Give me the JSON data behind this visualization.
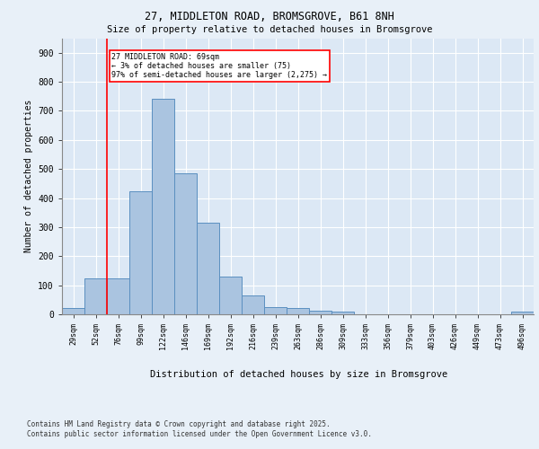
{
  "title1": "27, MIDDLETON ROAD, BROMSGROVE, B61 8NH",
  "title2": "Size of property relative to detached houses in Bromsgrove",
  "xlabel": "Distribution of detached houses by size in Bromsgrove",
  "ylabel": "Number of detached properties",
  "bin_labels": [
    "29sqm",
    "52sqm",
    "76sqm",
    "99sqm",
    "122sqm",
    "146sqm",
    "169sqm",
    "192sqm",
    "216sqm",
    "239sqm",
    "263sqm",
    "286sqm",
    "309sqm",
    "333sqm",
    "356sqm",
    "379sqm",
    "403sqm",
    "426sqm",
    "449sqm",
    "473sqm",
    "496sqm"
  ],
  "bar_values": [
    22,
    125,
    125,
    422,
    743,
    484,
    315,
    130,
    65,
    25,
    22,
    13,
    8,
    0,
    0,
    0,
    0,
    0,
    0,
    0,
    8
  ],
  "bar_color": "#aac4e0",
  "bar_edge_color": "#5a8fc0",
  "vline_x_idx": 2,
  "vline_color": "red",
  "annotation_text": "27 MIDDLETON ROAD: 69sqm\n← 3% of detached houses are smaller (75)\n97% of semi-detached houses are larger (2,275) →",
  "annotation_box_color": "white",
  "annotation_box_edge_color": "red",
  "ylim": [
    0,
    950
  ],
  "yticks": [
    0,
    100,
    200,
    300,
    400,
    500,
    600,
    700,
    800,
    900
  ],
  "bg_color": "#e8f0f8",
  "plot_bg_color": "#dce8f5",
  "footer": "Contains HM Land Registry data © Crown copyright and database right 2025.\nContains public sector information licensed under the Open Government Licence v3.0.",
  "figsize": [
    6.0,
    5.0
  ],
  "dpi": 100
}
